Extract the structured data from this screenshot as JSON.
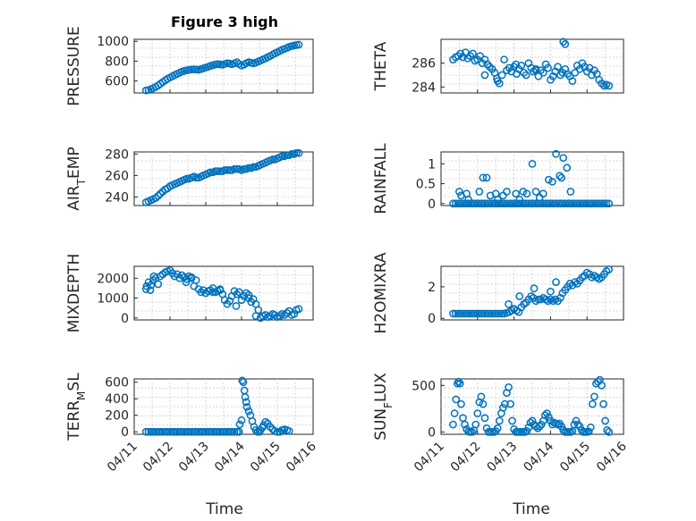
{
  "figure": {
    "title": "Figure 3 high",
    "x_axis_label": "Time",
    "marker_color": "#0072BD"
  },
  "chart_data": [
    {
      "type": "scatter",
      "name": "pressure",
      "ylabel": "PRESSURE",
      "xlim": [
        0,
        5
      ],
      "ylim": [
        480,
        1020
      ],
      "yticks": [
        600,
        800,
        1000
      ],
      "x_tick_labels": [],
      "x": [
        0.33,
        0.4,
        0.47,
        0.53,
        0.6,
        0.67,
        0.73,
        0.8,
        0.87,
        0.93,
        1.0,
        1.07,
        1.13,
        1.2,
        1.27,
        1.33,
        1.4,
        1.47,
        1.53,
        1.6,
        1.67,
        1.73,
        1.8,
        1.87,
        1.93,
        2.0,
        2.07,
        2.13,
        2.2,
        2.27,
        2.33,
        2.4,
        2.47,
        2.53,
        2.6,
        2.67,
        2.73,
        2.8,
        2.87,
        2.93,
        3.0,
        3.07,
        3.13,
        3.2,
        3.27,
        3.33,
        3.4,
        3.47,
        3.53,
        3.6,
        3.67,
        3.73,
        3.8,
        3.87,
        3.93,
        4.0,
        4.07,
        4.13,
        4.2,
        4.27,
        4.33,
        4.4,
        4.47,
        4.53,
        4.6
      ],
      "y": [
        505,
        510,
        518,
        528,
        540,
        556,
        572,
        590,
        608,
        622,
        636,
        648,
        660,
        672,
        684,
        694,
        702,
        708,
        712,
        716,
        718,
        716,
        714,
        720,
        728,
        736,
        744,
        752,
        760,
        766,
        770,
        768,
        764,
        772,
        780,
        776,
        770,
        778,
        790,
        772,
        755,
        765,
        780,
        790,
        784,
        778,
        786,
        796,
        806,
        818,
        828,
        840,
        852,
        866,
        878,
        890,
        902,
        914,
        924,
        934,
        944,
        952,
        958,
        962,
        966
      ]
    },
    {
      "type": "scatter",
      "name": "theta",
      "ylabel": "THETA",
      "xlim": [
        0,
        5
      ],
      "ylim": [
        283.5,
        288.0
      ],
      "yticks": [
        284,
        286
      ],
      "x_tick_labels": [],
      "x": [
        0.33,
        0.4,
        0.47,
        0.53,
        0.6,
        0.67,
        0.73,
        0.8,
        0.87,
        0.93,
        1.0,
        1.07,
        1.13,
        1.2,
        1.27,
        1.33,
        1.4,
        1.47,
        1.53,
        1.6,
        1.67,
        1.73,
        1.8,
        1.87,
        1.93,
        2.0,
        2.07,
        2.13,
        2.2,
        2.27,
        2.33,
        2.4,
        2.47,
        2.53,
        2.6,
        2.67,
        2.73,
        2.8,
        2.87,
        2.93,
        3.0,
        3.07,
        3.13,
        3.2,
        3.27,
        3.33,
        3.4,
        3.47,
        3.53,
        3.6,
        3.67,
        3.73,
        3.8,
        3.87,
        3.93,
        4.0,
        4.07,
        4.13,
        4.2,
        4.27,
        4.33,
        4.4,
        4.47,
        4.53,
        4.6,
        3.35,
        3.4,
        1.2,
        1.55,
        2.05,
        2.6
      ],
      "y": [
        286.3,
        286.5,
        286.6,
        286.8,
        286.5,
        286.9,
        286.4,
        286.6,
        286.8,
        286.2,
        286.3,
        286.6,
        286.0,
        286.3,
        285.9,
        285.7,
        285.5,
        285.2,
        284.7,
        284.3,
        285.0,
        286.3,
        285.4,
        285.6,
        285.3,
        285.7,
        285.1,
        285.5,
        285.8,
        285.2,
        285.0,
        286.0,
        285.6,
        285.3,
        285.5,
        284.9,
        285.4,
        285.2,
        285.9,
        285.6,
        284.6,
        284.9,
        285.3,
        285.7,
        285.0,
        285.2,
        285.5,
        285.1,
        284.9,
        284.5,
        285.2,
        285.8,
        285.5,
        286.0,
        285.7,
        285.3,
        285.6,
        285.0,
        285.4,
        285.1,
        284.6,
        284.3,
        284.1,
        284.2,
        284.1,
        287.8,
        287.6,
        285.0,
        284.5,
        285.9,
        285.4
      ]
    },
    {
      "type": "scatter",
      "name": "air-temp",
      "ylabel": "AIR_TEMP",
      "xlim": [
        0,
        5
      ],
      "ylim": [
        232,
        282
      ],
      "yticks": [
        240,
        260,
        280
      ],
      "x_tick_labels": [],
      "x": [
        0.33,
        0.4,
        0.47,
        0.53,
        0.6,
        0.67,
        0.73,
        0.8,
        0.87,
        0.93,
        1.0,
        1.07,
        1.13,
        1.2,
        1.27,
        1.33,
        1.4,
        1.47,
        1.53,
        1.6,
        1.67,
        1.73,
        1.8,
        1.87,
        1.93,
        2.0,
        2.07,
        2.13,
        2.2,
        2.27,
        2.33,
        2.4,
        2.47,
        2.53,
        2.6,
        2.67,
        2.73,
        2.8,
        2.87,
        2.93,
        3.0,
        3.07,
        3.13,
        3.2,
        3.27,
        3.33,
        3.4,
        3.47,
        3.53,
        3.6,
        3.67,
        3.73,
        3.8,
        3.87,
        3.93,
        4.0,
        4.07,
        4.13,
        4.2,
        4.27,
        4.33,
        4.4,
        4.47,
        4.53,
        4.6
      ],
      "y": [
        235,
        236,
        237,
        238,
        239,
        241,
        243,
        245,
        247,
        248,
        250,
        251,
        252,
        253,
        254,
        255,
        256,
        257,
        257,
        258,
        259,
        258,
        258,
        259,
        260,
        261,
        262,
        263,
        263,
        264,
        264,
        264,
        264,
        265,
        265,
        265,
        265,
        266,
        266,
        266,
        265,
        266,
        266,
        267,
        267,
        268,
        268,
        269,
        270,
        271,
        272,
        273,
        274,
        275,
        275,
        276,
        277,
        278,
        278,
        279,
        279,
        280,
        280,
        281,
        281
      ]
    },
    {
      "type": "scatter",
      "name": "rainfall",
      "ylabel": "RAINFALL",
      "xlim": [
        0,
        5
      ],
      "ylim": [
        -0.05,
        1.3
      ],
      "yticks": [
        0,
        0.5,
        1
      ],
      "x_tick_labels": [],
      "x": [
        0.33,
        0.4,
        0.47,
        0.53,
        0.6,
        0.67,
        0.73,
        0.8,
        0.87,
        0.93,
        1.0,
        1.07,
        1.13,
        1.2,
        1.27,
        1.33,
        1.4,
        1.47,
        1.53,
        1.6,
        1.67,
        1.73,
        1.8,
        1.87,
        1.93,
        2.0,
        2.07,
        2.13,
        2.2,
        2.27,
        2.33,
        2.4,
        2.47,
        2.53,
        2.6,
        2.67,
        2.73,
        2.8,
        2.87,
        2.93,
        3.0,
        3.07,
        3.13,
        3.2,
        3.27,
        3.33,
        3.4,
        3.47,
        3.53,
        3.6,
        3.67,
        3.73,
        3.8,
        3.87,
        3.93,
        4.0,
        4.07,
        4.13,
        4.2,
        4.27,
        4.33,
        4.4,
        4.47,
        4.53,
        4.6,
        0.5,
        0.55,
        0.7,
        0.75,
        1.05,
        1.15,
        1.25,
        1.35,
        1.5,
        1.55,
        1.7,
        1.8,
        2.05,
        2.15,
        2.25,
        2.35,
        2.5,
        2.6,
        2.7,
        2.8,
        2.95,
        3.05,
        3.15,
        3.25,
        3.3,
        3.35,
        3.45,
        3.55
      ],
      "y": [
        0,
        0,
        0,
        0,
        0,
        0,
        0,
        0,
        0,
        0,
        0,
        0,
        0,
        0,
        0,
        0,
        0,
        0,
        0,
        0,
        0,
        0,
        0,
        0,
        0,
        0,
        0,
        0,
        0,
        0,
        0,
        0,
        0,
        0,
        0,
        0,
        0,
        0,
        0,
        0,
        0,
        0,
        0,
        0,
        0,
        0,
        0,
        0,
        0,
        0,
        0,
        0,
        0,
        0,
        0,
        0,
        0,
        0,
        0,
        0,
        0,
        0,
        0,
        0,
        0,
        0.3,
        0.2,
        0.25,
        0.1,
        0.3,
        0.65,
        0.65,
        0.2,
        0.25,
        0.1,
        0.2,
        0.3,
        0.25,
        0.1,
        0.3,
        0.25,
        1.0,
        0.3,
        0.15,
        0.25,
        0.6,
        0.55,
        1.25,
        0.7,
        0.65,
        1.15,
        0.9,
        0.3
      ]
    },
    {
      "type": "scatter",
      "name": "mixdepth",
      "ylabel": "MIXDEPTH",
      "xlim": [
        0,
        5
      ],
      "ylim": [
        -100,
        2600
      ],
      "yticks": [
        0,
        1000,
        2000
      ],
      "x_tick_labels": [],
      "x": [
        0.33,
        0.4,
        0.47,
        0.53,
        0.6,
        0.67,
        0.73,
        0.8,
        0.87,
        0.93,
        1.0,
        1.07,
        1.13,
        1.2,
        1.27,
        1.33,
        1.4,
        1.47,
        1.53,
        1.6,
        1.67,
        1.73,
        1.8,
        1.87,
        1.93,
        2.0,
        2.07,
        2.13,
        2.2,
        2.27,
        2.33,
        2.4,
        2.47,
        2.53,
        2.6,
        2.67,
        2.73,
        2.8,
        2.87,
        2.93,
        3.0,
        3.07,
        3.13,
        3.2,
        3.27,
        3.33,
        3.4,
        3.47,
        3.53,
        3.6,
        3.67,
        3.73,
        3.8,
        3.87,
        3.93,
        4.0,
        4.07,
        4.13,
        4.2,
        4.27,
        4.33,
        4.4,
        4.47,
        4.53,
        4.6,
        0.35,
        0.45,
        0.55,
        1.45,
        1.6,
        2.2,
        2.4,
        2.85,
        3.2,
        3.4
      ],
      "y": [
        1450,
        1800,
        1650,
        1900,
        2000,
        1700,
        2100,
        2200,
        2300,
        2350,
        2400,
        2250,
        2100,
        2200,
        2000,
        2150,
        2050,
        1950,
        2100,
        2000,
        1600,
        1900,
        1450,
        1300,
        1400,
        1250,
        1350,
        1400,
        1500,
        1300,
        1350,
        1400,
        1200,
        900,
        700,
        850,
        1100,
        1350,
        1200,
        1300,
        900,
        1100,
        1250,
        1150,
        800,
        950,
        700,
        400,
        0,
        100,
        150,
        50,
        100,
        200,
        150,
        50,
        100,
        200,
        150,
        250,
        350,
        150,
        200,
        400,
        450,
        1600,
        1400,
        2100,
        1800,
        2050,
        1300,
        1450,
        600,
        1000,
        100
      ]
    },
    {
      "type": "scatter",
      "name": "h2omixra",
      "ylabel": "H2OMIXRA",
      "xlim": [
        0,
        5
      ],
      "ylim": [
        -0.1,
        3.3
      ],
      "yticks": [
        0,
        2
      ],
      "x_tick_labels": [],
      "x": [
        0.33,
        0.4,
        0.47,
        0.53,
        0.6,
        0.67,
        0.73,
        0.8,
        0.87,
        0.93,
        1.0,
        1.07,
        1.13,
        1.2,
        1.27,
        1.33,
        1.4,
        1.47,
        1.53,
        1.6,
        1.67,
        1.73,
        1.8,
        1.87,
        1.93,
        2.0,
        2.07,
        2.13,
        2.2,
        2.27,
        2.33,
        2.4,
        2.47,
        2.53,
        2.6,
        2.67,
        2.73,
        2.8,
        2.87,
        2.93,
        3.0,
        3.07,
        3.13,
        3.2,
        3.27,
        3.33,
        3.4,
        3.47,
        3.53,
        3.6,
        3.67,
        3.73,
        3.8,
        3.87,
        3.93,
        4.0,
        4.07,
        4.13,
        4.2,
        4.27,
        4.33,
        4.4,
        4.47,
        4.53,
        4.6,
        1.85,
        2.0,
        2.15,
        2.55,
        3.0,
        3.15
      ],
      "y": [
        0.3,
        0.3,
        0.3,
        0.3,
        0.3,
        0.3,
        0.3,
        0.3,
        0.3,
        0.3,
        0.3,
        0.3,
        0.3,
        0.3,
        0.3,
        0.3,
        0.3,
        0.3,
        0.3,
        0.3,
        0.3,
        0.3,
        0.35,
        0.4,
        0.5,
        0.6,
        0.5,
        0.4,
        0.7,
        0.9,
        1.0,
        1.2,
        1.4,
        1.3,
        1.1,
        1.2,
        1.2,
        1.3,
        1.2,
        1.1,
        1.2,
        1.1,
        1.2,
        1.1,
        1.3,
        1.6,
        1.8,
        2.0,
        2.2,
        2.1,
        2.3,
        2.2,
        2.4,
        2.6,
        2.7,
        2.9,
        2.8,
        2.6,
        2.7,
        2.6,
        2.5,
        2.6,
        2.8,
        3.0,
        3.1,
        0.9,
        0.6,
        1.4,
        1.9,
        1.7,
        2.3
      ]
    },
    {
      "type": "scatter",
      "name": "terr-msl",
      "ylabel": "TERR_MSL",
      "xlim": [
        0,
        5
      ],
      "ylim": [
        -30,
        640
      ],
      "yticks": [
        0,
        200,
        400,
        600
      ],
      "x_tick_labels": [
        "04/11",
        "04/12",
        "04/13",
        "04/14",
        "04/15",
        "04/16"
      ],
      "x": [
        0.33,
        0.4,
        0.47,
        0.53,
        0.6,
        0.67,
        0.73,
        0.8,
        0.87,
        0.93,
        1.0,
        1.07,
        1.13,
        1.2,
        1.27,
        1.33,
        1.4,
        1.47,
        1.53,
        1.6,
        1.67,
        1.73,
        1.8,
        1.87,
        1.93,
        2.0,
        2.07,
        2.13,
        2.2,
        2.27,
        2.33,
        2.4,
        2.47,
        2.53,
        2.6,
        2.67,
        2.73,
        2.8,
        2.87,
        2.93,
        2.95,
        3.0,
        3.02,
        3.05,
        3.08,
        3.1,
        3.13,
        3.15,
        3.2,
        3.25,
        3.3,
        3.35,
        3.4,
        3.45,
        3.5,
        3.53,
        3.58,
        3.62,
        3.67,
        3.73,
        3.8,
        3.87,
        3.93,
        4.0,
        4.07,
        4.13,
        4.2,
        4.27,
        4.33
      ],
      "y": [
        0,
        0,
        0,
        0,
        0,
        0,
        0,
        0,
        0,
        0,
        0,
        0,
        0,
        0,
        0,
        0,
        0,
        0,
        0,
        0,
        0,
        0,
        0,
        0,
        0,
        0,
        0,
        0,
        0,
        0,
        0,
        0,
        0,
        0,
        0,
        0,
        0,
        0,
        0,
        0,
        90,
        140,
        620,
        600,
        500,
        420,
        360,
        300,
        250,
        200,
        130,
        60,
        20,
        0,
        0,
        20,
        50,
        80,
        120,
        100,
        60,
        30,
        10,
        0,
        0,
        20,
        30,
        20,
        10
      ]
    },
    {
      "type": "scatter",
      "name": "sun-flux",
      "ylabel": "SUN_FLUX",
      "xlim": [
        0,
        5
      ],
      "ylim": [
        -25,
        570
      ],
      "yticks": [
        0,
        500
      ],
      "x_tick_labels": [
        "04/11",
        "04/12",
        "04/13",
        "04/14",
        "04/15",
        "04/16"
      ],
      "x": [
        0.33,
        0.37,
        0.41,
        0.45,
        0.48,
        0.52,
        0.55,
        0.6,
        0.65,
        0.7,
        0.75,
        0.8,
        0.85,
        0.9,
        0.95,
        1.0,
        1.05,
        1.1,
        1.15,
        1.2,
        1.25,
        1.3,
        1.35,
        1.4,
        1.45,
        1.5,
        1.55,
        1.6,
        1.65,
        1.7,
        1.75,
        1.8,
        1.85,
        1.9,
        1.95,
        2.0,
        2.05,
        2.1,
        2.15,
        2.2,
        2.25,
        2.3,
        2.35,
        2.4,
        2.45,
        2.5,
        2.55,
        2.6,
        2.65,
        2.7,
        2.75,
        2.8,
        2.85,
        2.9,
        2.95,
        3.0,
        3.05,
        3.1,
        3.15,
        3.2,
        3.25,
        3.3,
        3.35,
        3.4,
        3.45,
        3.5,
        3.55,
        3.6,
        3.65,
        3.7,
        3.75,
        3.8,
        3.85,
        3.9,
        3.95,
        4.0,
        4.05,
        4.1,
        4.15,
        4.2,
        4.25,
        4.3,
        4.35,
        4.4,
        4.45,
        4.5,
        4.55,
        4.6
      ],
      "y": [
        80,
        200,
        350,
        520,
        540,
        520,
        300,
        150,
        80,
        30,
        5,
        0,
        0,
        20,
        80,
        200,
        320,
        380,
        300,
        150,
        40,
        0,
        0,
        0,
        0,
        10,
        40,
        120,
        200,
        260,
        300,
        420,
        480,
        300,
        120,
        30,
        0,
        0,
        0,
        0,
        0,
        0,
        10,
        50,
        100,
        120,
        80,
        60,
        40,
        60,
        80,
        120,
        180,
        200,
        160,
        120,
        80,
        100,
        90,
        80,
        90,
        60,
        20,
        0,
        0,
        0,
        0,
        10,
        80,
        120,
        80,
        60,
        20,
        0,
        0,
        0,
        5,
        50,
        300,
        380,
        520,
        540,
        560,
        500,
        300,
        120,
        20,
        0
      ]
    }
  ]
}
